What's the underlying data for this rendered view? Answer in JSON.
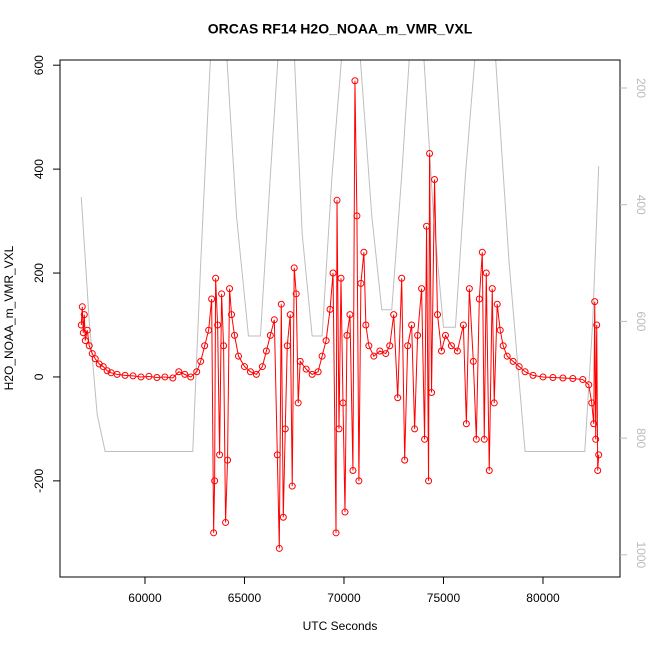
{
  "chart_data": {
    "type": "scatter",
    "title": "ORCAS RF14 H2O_NOAA_m_VMR_VXL",
    "x_label": "UTC Seconds",
    "y_label": "H2O_NOAA_m_VMR_VXL",
    "xlim": [
      55730,
      83870
    ],
    "xticks": [
      60000,
      65000,
      70000,
      75000,
      80000
    ],
    "ylim": [
      -385,
      610
    ],
    "yticks": [
      -200,
      0,
      200,
      400,
      600
    ],
    "y2lim": [
      1038,
      152
    ],
    "y2ticks": [
      200,
      400,
      600,
      800,
      1000
    ],
    "series": [
      {
        "color": "#ff0000",
        "marker": "circle",
        "line": true,
        "x": [
          56800,
          56850,
          56900,
          56950,
          57000,
          57100,
          57200,
          57350,
          57500,
          57700,
          57900,
          58100,
          58300,
          58600,
          59000,
          59400,
          59800,
          60200,
          60600,
          61000,
          61400,
          61700,
          62000,
          62300,
          62600,
          62800,
          63000,
          63200,
          63350,
          63450,
          63500,
          63550,
          63650,
          63750,
          63850,
          63950,
          64050,
          64150,
          64250,
          64350,
          64500,
          64700,
          65000,
          65300,
          65600,
          65900,
          66100,
          66300,
          66500,
          66650,
          66750,
          66850,
          66950,
          67050,
          67150,
          67300,
          67400,
          67500,
          67600,
          67700,
          67800,
          68100,
          68400,
          68700,
          68900,
          69100,
          69300,
          69450,
          69600,
          69650,
          69750,
          69850,
          69950,
          70050,
          70150,
          70300,
          70450,
          70550,
          70650,
          70750,
          70850,
          71000,
          71100,
          71250,
          71500,
          71800,
          72100,
          72300,
          72500,
          72700,
          72900,
          73050,
          73200,
          73400,
          73550,
          73700,
          73900,
          74050,
          74150,
          74250,
          74300,
          74400,
          74550,
          74700,
          74900,
          75100,
          75400,
          75700,
          76000,
          76150,
          76300,
          76500,
          76650,
          76800,
          76950,
          77050,
          77150,
          77300,
          77450,
          77550,
          77700,
          77850,
          78000,
          78200,
          78500,
          78800,
          79100,
          79500,
          80000,
          80500,
          81000,
          81500,
          82000,
          82300,
          82450,
          82550,
          82600,
          82650,
          82700,
          82750,
          82800
        ],
        "values": [
          100,
          135,
          85,
          120,
          70,
          90,
          60,
          45,
          35,
          25,
          20,
          12,
          8,
          5,
          3,
          2,
          0,
          1,
          -1,
          0,
          -2,
          10,
          5,
          0,
          10,
          30,
          60,
          90,
          150,
          -300,
          -200,
          190,
          100,
          -150,
          160,
          60,
          -280,
          -160,
          170,
          120,
          80,
          40,
          20,
          10,
          5,
          20,
          50,
          80,
          110,
          -150,
          -330,
          140,
          -270,
          -100,
          60,
          120,
          -210,
          210,
          160,
          -50,
          30,
          15,
          5,
          10,
          40,
          70,
          130,
          200,
          -300,
          340,
          -100,
          190,
          -50,
          -260,
          80,
          120,
          -180,
          570,
          310,
          -200,
          180,
          240,
          100,
          60,
          40,
          50,
          45,
          60,
          120,
          -40,
          190,
          -160,
          60,
          100,
          -100,
          80,
          170,
          -120,
          290,
          -200,
          430,
          -30,
          380,
          120,
          50,
          80,
          60,
          50,
          100,
          -90,
          170,
          30,
          -120,
          150,
          240,
          -120,
          200,
          -180,
          170,
          -50,
          140,
          90,
          60,
          40,
          30,
          20,
          10,
          3,
          0,
          -1,
          -2,
          -3,
          -5,
          -15,
          -50,
          -90,
          145,
          -120,
          100,
          -180,
          -150
        ]
      },
      {
        "color": "#bebebe",
        "axis": "y2",
        "marker": "none",
        "line": true,
        "x": [
          56800,
          57200,
          57600,
          58000,
          62400,
          62800,
          63300,
          64100,
          64600,
          65200,
          65800,
          66300,
          66700,
          67500,
          67900,
          68400,
          68900,
          69400,
          69900,
          70800,
          71400,
          71900,
          72400,
          72900,
          73300,
          74000,
          74500,
          75000,
          75600,
          76100,
          76600,
          77600,
          78300,
          79100,
          82100,
          82500,
          82800
        ],
        "values": [
          387,
          600,
          760,
          823,
          823,
          500,
          140,
          140,
          420,
          625,
          625,
          350,
          140,
          140,
          450,
          625,
          625,
          350,
          140,
          140,
          420,
          580,
          580,
          350,
          140,
          140,
          420,
          610,
          610,
          350,
          140,
          140,
          500,
          823,
          823,
          600,
          334
        ]
      }
    ]
  }
}
